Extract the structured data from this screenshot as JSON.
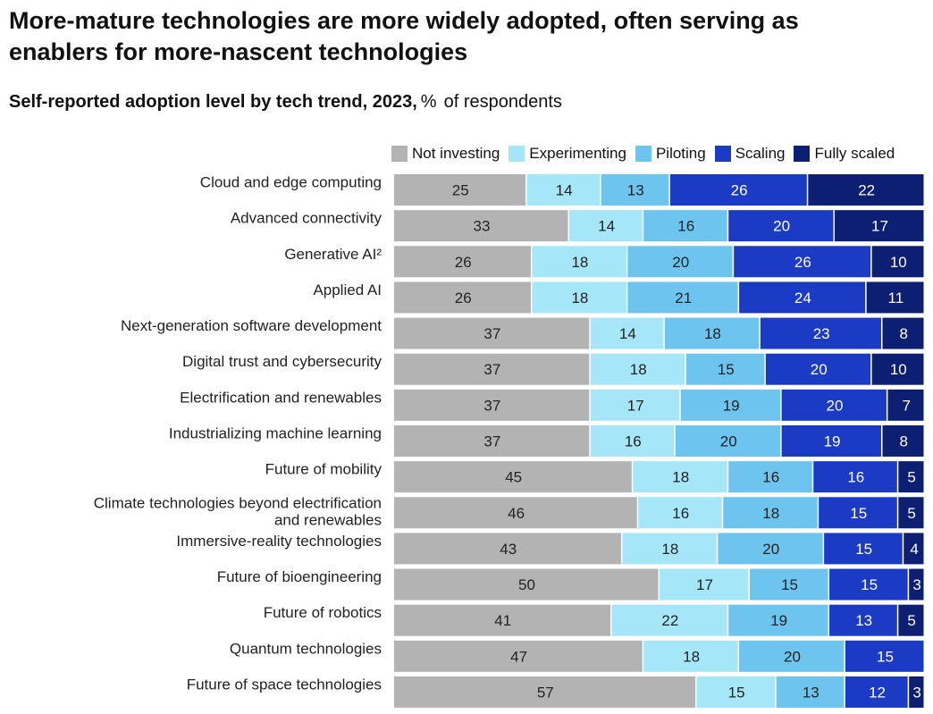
{
  "title": "More-mature technologies are more widely adopted, often serving as enablers for more-nascent technologies",
  "subtitle": {
    "bold": "Self-reported adoption level by tech trend, 2023,",
    "unit": "%",
    "rest": "of respondents"
  },
  "colors": {
    "Not investing": "#b3b3b3",
    "Experimenting": "#a6e6f9",
    "Piloting": "#6cc4ef",
    "Scaling": "#1b3bc4",
    "Fully scaled": "#0c1f73"
  },
  "chart_data": {
    "type": "bar",
    "orientation": "horizontal",
    "stacked": true,
    "legend_position": "top",
    "grid": false,
    "xlim": [
      0,
      100
    ],
    "categories": [
      "Cloud and edge computing",
      "Advanced connectivity",
      "Generative AI²",
      "Applied AI",
      "Next-generation software development",
      "Digital trust and cybersecurity",
      "Electrification and renewables",
      "Industrializing machine learning",
      "Future of mobility",
      "Climate technologies beyond electrification and renewables",
      "Immersive-reality technologies",
      "Future of bioengineering",
      "Future of robotics",
      "Quantum technologies",
      "Future of space technologies"
    ],
    "series": [
      {
        "name": "Not investing",
        "values": [
          25,
          33,
          26,
          26,
          37,
          37,
          37,
          37,
          45,
          46,
          43,
          50,
          41,
          47,
          57
        ]
      },
      {
        "name": "Experimenting",
        "values": [
          14,
          14,
          18,
          18,
          14,
          18,
          17,
          16,
          18,
          16,
          18,
          17,
          22,
          18,
          15
        ]
      },
      {
        "name": "Piloting",
        "values": [
          13,
          16,
          20,
          21,
          18,
          15,
          19,
          20,
          16,
          18,
          20,
          15,
          19,
          20,
          13
        ]
      },
      {
        "name": "Scaling",
        "values": [
          26,
          20,
          26,
          24,
          23,
          20,
          20,
          19,
          16,
          15,
          15,
          15,
          13,
          15,
          12
        ]
      },
      {
        "name": "Fully scaled",
        "values": [
          22,
          17,
          10,
          11,
          8,
          10,
          7,
          8,
          5,
          5,
          4,
          3,
          5,
          null,
          3
        ]
      }
    ]
  }
}
